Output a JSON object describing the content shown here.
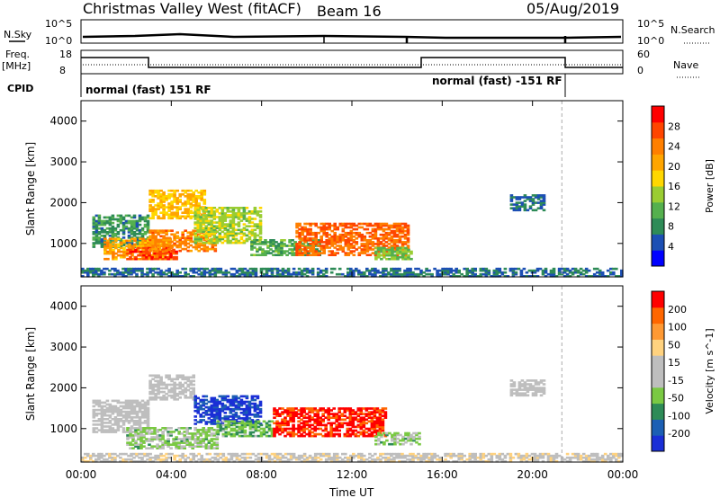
{
  "header": {
    "title": "Christmas Valley West (fitACF)",
    "beam": "Beam 16",
    "date": "05/Aug/2019"
  },
  "strips": {
    "nsky_label": "N.Sky",
    "nsearch_label": "N.Search",
    "nsky_ticks": [
      "10^5",
      "10^0"
    ],
    "nsearch_ticks": [
      "10^5",
      "10^0"
    ],
    "freq_label": "Freq.",
    "freq_unit": "[MHz]",
    "freq_ticks": [
      "18",
      "8"
    ],
    "nave_label": "Nave",
    "nave_ticks": [
      "60",
      "0"
    ],
    "cpid_label": "CPID",
    "cpid_segments": [
      "normal (fast) 151 RF",
      "normal (fast) -151 RF"
    ]
  },
  "colors": {
    "power": [
      "#0000ff",
      "#1c4fb4",
      "#2e8b57",
      "#55b04e",
      "#9acd32",
      "#ffd700",
      "#ffa500",
      "#ff7f00",
      "#ff4500",
      "#ff0000"
    ],
    "velocity": [
      "#1a2fd6",
      "#1c5fb4",
      "#2e8b57",
      "#7ac943",
      "#bebebe",
      "#bebebe",
      "#ffd27f",
      "#ff9933",
      "#ff6600",
      "#ff0000"
    ]
  },
  "chart_data": [
    {
      "type": "heatmap",
      "title": "",
      "xlabel": "Time UT",
      "ylabel": "Slant Range [km]",
      "xlim": [
        "00:00",
        "24:00"
      ],
      "ylim": [
        180,
        4500
      ],
      "x_ticks": [
        "00:00",
        "04:00",
        "08:00",
        "12:00",
        "16:00",
        "20:00",
        "00:00"
      ],
      "y_ticks": [
        "1000",
        "2000",
        "3000",
        "4000"
      ],
      "colorbar": {
        "label": "Power [dB]",
        "ticks": [
          "28",
          "24",
          "20",
          "16",
          "12",
          "8",
          "4"
        ],
        "range": [
          0,
          30
        ]
      },
      "regions": [
        {
          "t0": 0.5,
          "t1": 3.0,
          "r0": 900,
          "r1": 1700,
          "value": 8
        },
        {
          "t0": 1.0,
          "t1": 4.0,
          "r0": 600,
          "r1": 1100,
          "value": 20
        },
        {
          "t0": 2.0,
          "t1": 4.2,
          "r0": 600,
          "r1": 900,
          "value": 26
        },
        {
          "t0": 3.0,
          "t1": 6.0,
          "r0": 800,
          "r1": 1300,
          "value": 22
        },
        {
          "t0": 3.0,
          "t1": 5.5,
          "r0": 1600,
          "r1": 2300,
          "value": 18
        },
        {
          "t0": 5.0,
          "t1": 8.0,
          "r0": 1000,
          "r1": 1900,
          "value": 14
        },
        {
          "t0": 7.5,
          "t1": 10.5,
          "r0": 700,
          "r1": 1100,
          "value": 10
        },
        {
          "t0": 9.5,
          "t1": 14.5,
          "r0": 700,
          "r1": 1500,
          "value": 24
        },
        {
          "t0": 13.0,
          "t1": 14.6,
          "r0": 600,
          "r1": 900,
          "value": 12
        },
        {
          "t0": 19.0,
          "t1": 20.5,
          "r0": 1800,
          "r1": 2200,
          "value": 6
        },
        {
          "t0": 0.0,
          "t1": 24.0,
          "r0": 180,
          "r1": 400,
          "value": 6
        }
      ]
    },
    {
      "type": "heatmap",
      "title": "",
      "xlabel": "Time UT",
      "ylabel": "Slant Range [km]",
      "xlim": [
        "00:00",
        "24:00"
      ],
      "ylim": [
        180,
        4500
      ],
      "x_ticks": [
        "00:00",
        "04:00",
        "08:00",
        "12:00",
        "16:00",
        "20:00",
        "00:00"
      ],
      "y_ticks": [
        "1000",
        "2000",
        "3000",
        "4000"
      ],
      "colorbar": {
        "label": "Velocity [m s^-1]",
        "ticks": [
          "200",
          "100",
          "50",
          "15",
          "-15",
          "-50",
          "-100",
          "-200"
        ],
        "range": [
          -250,
          250
        ]
      },
      "regions": [
        {
          "t0": 0.5,
          "t1": 3.0,
          "r0": 900,
          "r1": 1700,
          "value": 0
        },
        {
          "t0": 2.0,
          "t1": 6.0,
          "r0": 500,
          "r1": 1000,
          "value": -60
        },
        {
          "t0": 3.0,
          "t1": 5.0,
          "r0": 1700,
          "r1": 2300,
          "value": 0
        },
        {
          "t0": 5.0,
          "t1": 8.0,
          "r0": 1100,
          "r1": 1800,
          "value": -220
        },
        {
          "t0": 6.0,
          "t1": 8.5,
          "r0": 800,
          "r1": 1200,
          "value": -90
        },
        {
          "t0": 8.5,
          "t1": 13.5,
          "r0": 800,
          "r1": 1500,
          "value": 220
        },
        {
          "t0": 13.0,
          "t1": 15.0,
          "r0": 600,
          "r1": 900,
          "value": -60
        },
        {
          "t0": 19.0,
          "t1": 20.5,
          "r0": 1800,
          "r1": 2200,
          "value": 0
        },
        {
          "t0": 0.0,
          "t1": 24.0,
          "r0": 180,
          "r1": 400,
          "value": 30
        }
      ]
    }
  ]
}
